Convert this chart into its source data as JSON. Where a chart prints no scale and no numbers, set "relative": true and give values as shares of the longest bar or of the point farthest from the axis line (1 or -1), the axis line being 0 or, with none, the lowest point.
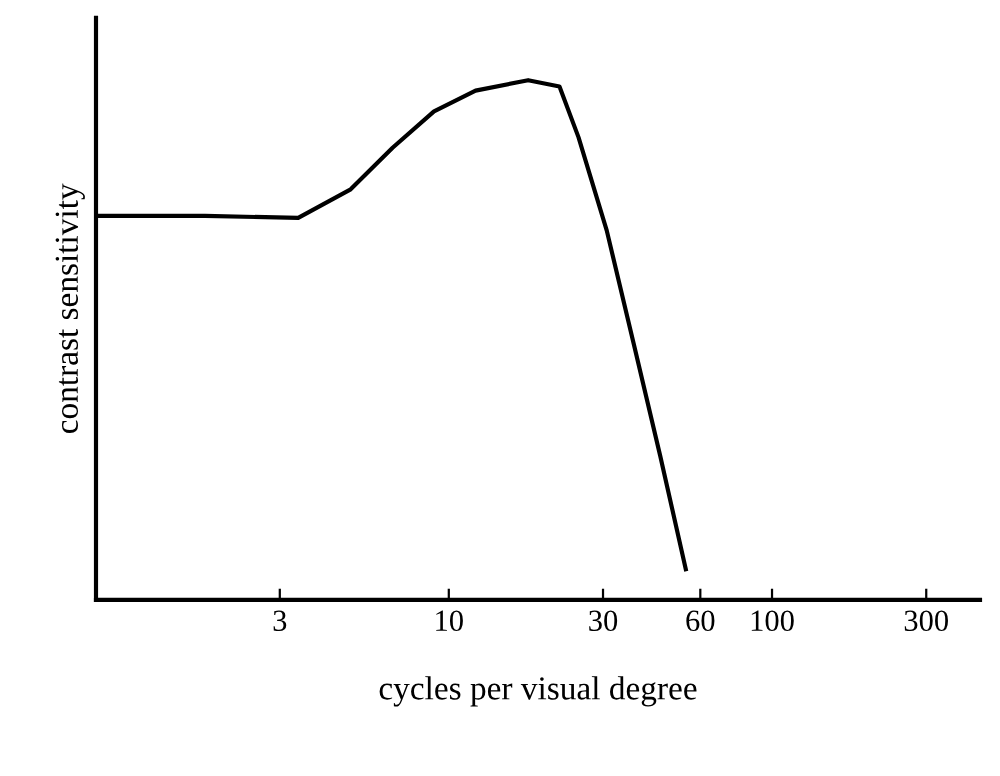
{
  "chart_data": {
    "type": "line",
    "xlabel": "cycles per visual degree",
    "ylabel": "contrast sensitivity",
    "relative": true,
    "log": "x",
    "xlim": [
      0.81,
      440
    ],
    "xticks": [
      3,
      10,
      30,
      60,
      100,
      300
    ],
    "grid": false,
    "legend": false,
    "marker": "none",
    "line_style": "solid",
    "series": [
      {
        "color": "#000000",
        "x": [
          0.83,
          1.76,
          3.42,
          4.97,
          6.7,
          9.0,
          12.1,
          17.6,
          22,
          25.2,
          30.8,
          37.3,
          45.1,
          54.1
        ],
        "values": [
          0.739,
          0.739,
          0.735,
          0.79,
          0.87,
          0.94,
          0.98,
          1,
          0.988,
          0.89,
          0.711,
          0.494,
          0.277,
          0.059
        ]
      }
    ]
  }
}
